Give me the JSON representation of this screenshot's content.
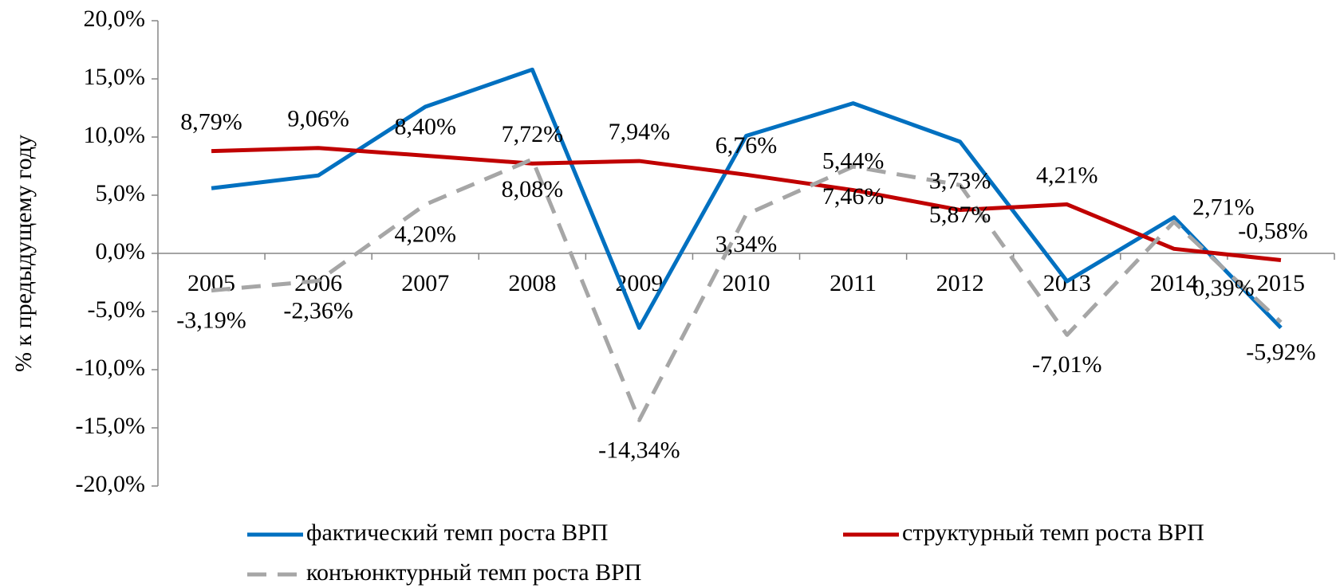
{
  "chart_data": {
    "type": "line",
    "ylabel": "% к предыдущему году",
    "categories": [
      "2005",
      "2006",
      "2007",
      "2008",
      "2009",
      "2010",
      "2011",
      "2012",
      "2013",
      "2014",
      "2015"
    ],
    "series": [
      {
        "name": "фактический темп роста ВРП",
        "color": "#0070c0",
        "line_style": "solid",
        "values": [
          5.6,
          6.7,
          12.6,
          15.8,
          -6.4,
          10.1,
          12.9,
          9.6,
          -2.4,
          3.1,
          -6.4
        ]
      },
      {
        "name": "структурный темп роста ВРП",
        "color": "#c00000",
        "line_style": "solid",
        "values": [
          8.79,
          9.06,
          8.4,
          7.72,
          7.94,
          6.76,
          5.44,
          3.73,
          4.21,
          0.39,
          -0.58
        ],
        "value_labels": [
          "8,79%",
          "9,06%",
          "8,40%",
          "7,72%",
          "7,94%",
          "6,76%",
          "5,44%",
          "3,73%",
          "4,21%",
          "0,39%",
          "-0,58%"
        ]
      },
      {
        "name": "конъюнктурный темп роста ВРП",
        "color": "#a6a6a6",
        "line_style": "dashed",
        "values": [
          -3.19,
          -2.36,
          4.2,
          8.08,
          -14.34,
          3.34,
          7.46,
          5.87,
          -7.01,
          2.71,
          -5.92
        ],
        "value_labels": [
          "-3,19%",
          "-2,36%",
          "4,20%",
          "8,08%",
          "-14,34%",
          "3,34%",
          "7,46%",
          "5,87%",
          "-7,01%",
          "2,71%",
          "-5,92%"
        ]
      }
    ],
    "ylim": [
      -20,
      20
    ],
    "yticks": [
      {
        "value": -20,
        "label": "-20,0%"
      },
      {
        "value": -15,
        "label": "-15,0%"
      },
      {
        "value": -10,
        "label": "-10,0%"
      },
      {
        "value": -5,
        "label": "-5,0%"
      },
      {
        "value": 0,
        "label": "0,0%"
      },
      {
        "value": 5,
        "label": "5,0%"
      },
      {
        "value": 10,
        "label": "10,0%"
      },
      {
        "value": 15,
        "label": "15,0%"
      },
      {
        "value": 20,
        "label": "20,0%"
      }
    ],
    "grid": false,
    "legend": "bottom"
  }
}
